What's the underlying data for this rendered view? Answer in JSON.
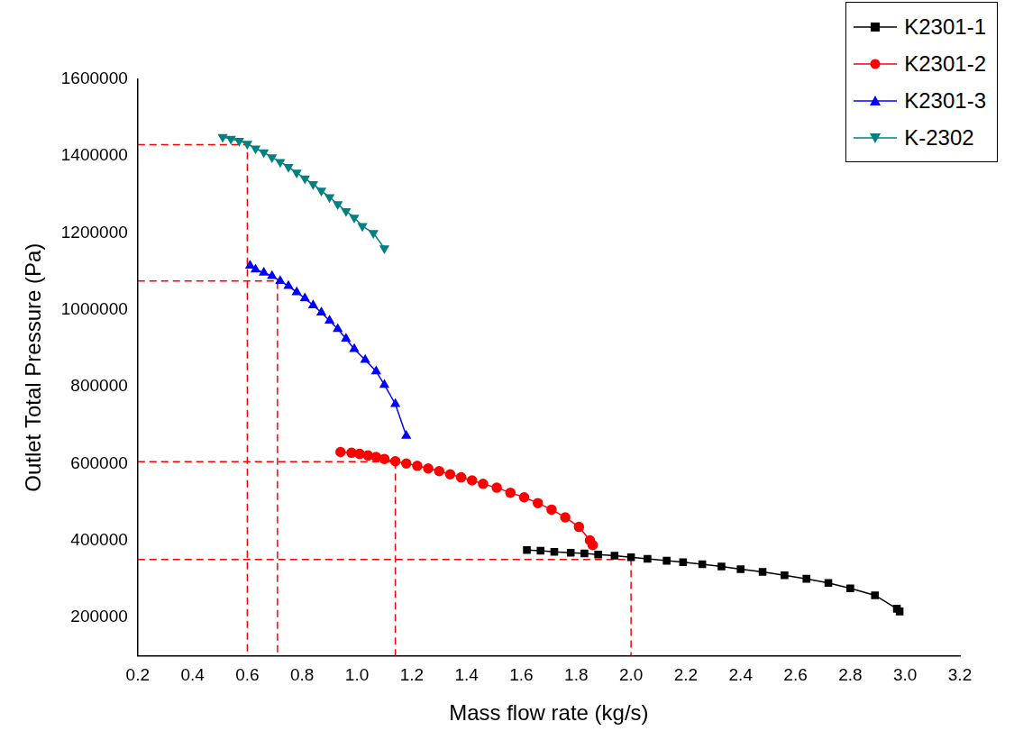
{
  "chart_data": {
    "type": "line",
    "x_label": "Mass flow rate (kg/s)",
    "y_label": "Outlet Total Pressure (Pa)",
    "xlim": [
      0.2,
      3.2
    ],
    "xticks": [
      0.2,
      0.4,
      0.6,
      0.8,
      {
        "value": 1,
        "label": "1.0"
      },
      1.2,
      1.4,
      1.6,
      1.8,
      {
        "value": 2,
        "label": "2.0"
      },
      2.2,
      2.4,
      2.6,
      2.8,
      {
        "value": 3,
        "label": "3.0"
      },
      3.2
    ],
    "ylim": [
      100000,
      1600000
    ],
    "yticks": [
      200000,
      400000,
      600000,
      800000,
      1000000,
      1200000,
      1400000,
      1600000
    ],
    "grid": false,
    "legend": "upper right",
    "series": [
      {
        "name": "K2301-1",
        "color": "#000000",
        "marker": "square",
        "x": [
          1.62,
          1.67,
          1.72,
          1.78,
          1.83,
          1.88,
          1.94,
          2.0,
          2.06,
          2.13,
          2.19,
          2.26,
          2.33,
          2.4,
          2.48,
          2.56,
          2.64,
          2.72,
          2.8,
          2.89,
          2.97,
          2.98
        ],
        "values": [
          375000,
          373000,
          370000,
          368000,
          366000,
          363000,
          360000,
          356000,
          352000,
          347000,
          343000,
          338000,
          332000,
          325000,
          318000,
          309000,
          300000,
          289000,
          275000,
          257000,
          222000,
          215000
        ]
      },
      {
        "name": "K2301-2",
        "color": "#ff0000",
        "marker": "circle",
        "x": [
          0.94,
          0.98,
          1.01,
          1.04,
          1.07,
          1.1,
          1.14,
          1.18,
          1.22,
          1.26,
          1.3,
          1.34,
          1.38,
          1.42,
          1.46,
          1.51,
          1.56,
          1.61,
          1.66,
          1.71,
          1.76,
          1.81,
          1.85,
          1.86
        ],
        "values": [
          630000,
          628000,
          625000,
          621000,
          617000,
          612000,
          606000,
          600000,
          594000,
          587000,
          580000,
          572000,
          564000,
          556000,
          547000,
          537000,
          524000,
          512000,
          497000,
          480000,
          460000,
          435000,
          400000,
          388000
        ]
      },
      {
        "name": "K2301-3",
        "color": "#0000ff",
        "marker": "triangle",
        "x": [
          0.61,
          0.63,
          0.66,
          0.69,
          0.72,
          0.75,
          0.78,
          0.81,
          0.84,
          0.87,
          0.9,
          0.93,
          0.96,
          0.99,
          1.03,
          1.07,
          1.1,
          1.14,
          1.18
        ],
        "values": [
          1115000,
          1105000,
          1097000,
          1088000,
          1075000,
          1062000,
          1046000,
          1030000,
          1012000,
          993000,
          972000,
          950000,
          925000,
          898000,
          870000,
          840000,
          805000,
          755000,
          672000
        ]
      },
      {
        "name": "K-2302",
        "color": "#008080",
        "marker": "triangle_down",
        "x": [
          0.51,
          0.54,
          0.57,
          0.6,
          0.63,
          0.66,
          0.69,
          0.72,
          0.75,
          0.78,
          0.81,
          0.84,
          0.87,
          0.9,
          0.93,
          0.96,
          0.99,
          1.02,
          1.06,
          1.1
        ],
        "values": [
          1450000,
          1445000,
          1440000,
          1432000,
          1420000,
          1410000,
          1397000,
          1385000,
          1372000,
          1357000,
          1342000,
          1327000,
          1310000,
          1293000,
          1275000,
          1257000,
          1240000,
          1218000,
          1200000,
          1160000
        ]
      }
    ],
    "reference_lines": {
      "color": "#ff0000",
      "line_style": "dashed",
      "points": [
        {
          "x": 0.6,
          "y": 1430000
        },
        {
          "x": 0.71,
          "y": 1075000
        },
        {
          "x": 1.14,
          "y": 605000
        },
        {
          "x": 2.0,
          "y": 350000
        }
      ]
    }
  }
}
